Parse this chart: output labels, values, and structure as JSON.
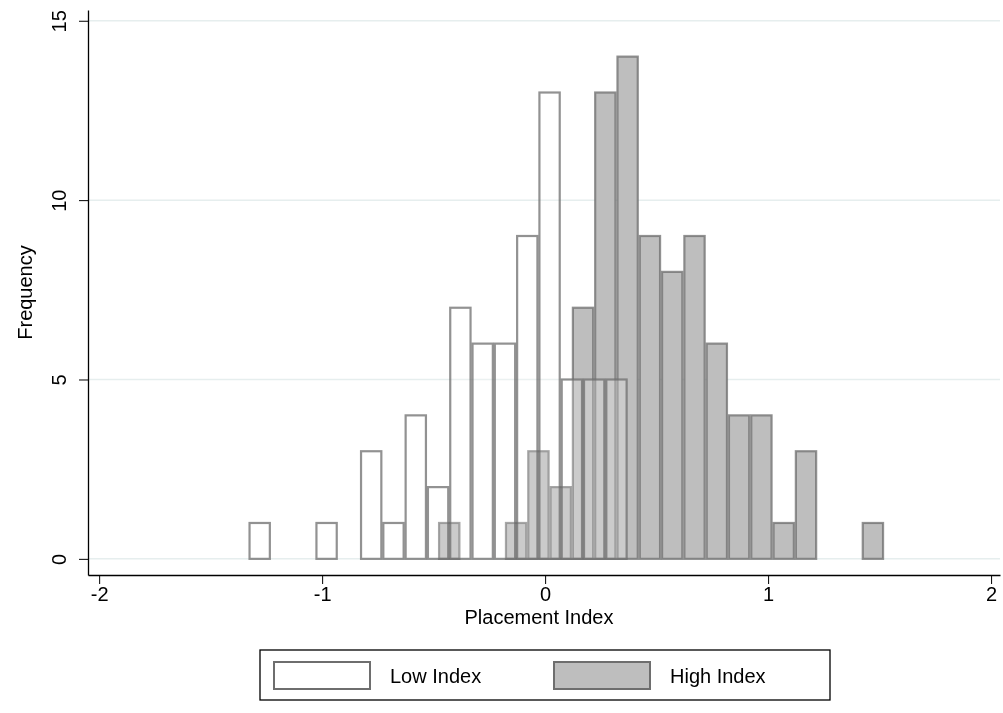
{
  "chart_data": {
    "type": "bar",
    "xlabel": "Placement Index",
    "ylabel": "Frequency",
    "xlim": [
      -2.05,
      2.04
    ],
    "xticks": [
      -2,
      -1,
      0,
      1,
      2
    ],
    "ylim": [
      -0.45,
      15.3
    ],
    "yticks": [
      0,
      5,
      10,
      15
    ],
    "grid": "y",
    "legend": "bottom",
    "series": [
      {
        "name": "Low Index",
        "color": "#ffffff",
        "x": [
          -1.28,
          -0.98,
          -0.78,
          -0.68,
          -0.58,
          -0.48,
          -0.38,
          -0.28,
          -0.18,
          -0.08,
          0.02,
          0.12,
          0.22,
          0.32
        ],
        "values": [
          1,
          1,
          3,
          1,
          4,
          2,
          7,
          6,
          6,
          9,
          13,
          5,
          5,
          5
        ]
      },
      {
        "name": "High Index",
        "color": "#bebebe",
        "x": [
          -0.43,
          -0.13,
          -0.03,
          0.07,
          0.17,
          0.27,
          0.37,
          0.47,
          0.57,
          0.67,
          0.77,
          0.87,
          0.97,
          1.07,
          1.17,
          1.47
        ],
        "values": [
          1,
          1,
          3,
          2,
          7,
          13,
          14,
          9,
          8,
          9,
          6,
          4,
          4,
          1,
          3,
          1
        ]
      }
    ]
  }
}
